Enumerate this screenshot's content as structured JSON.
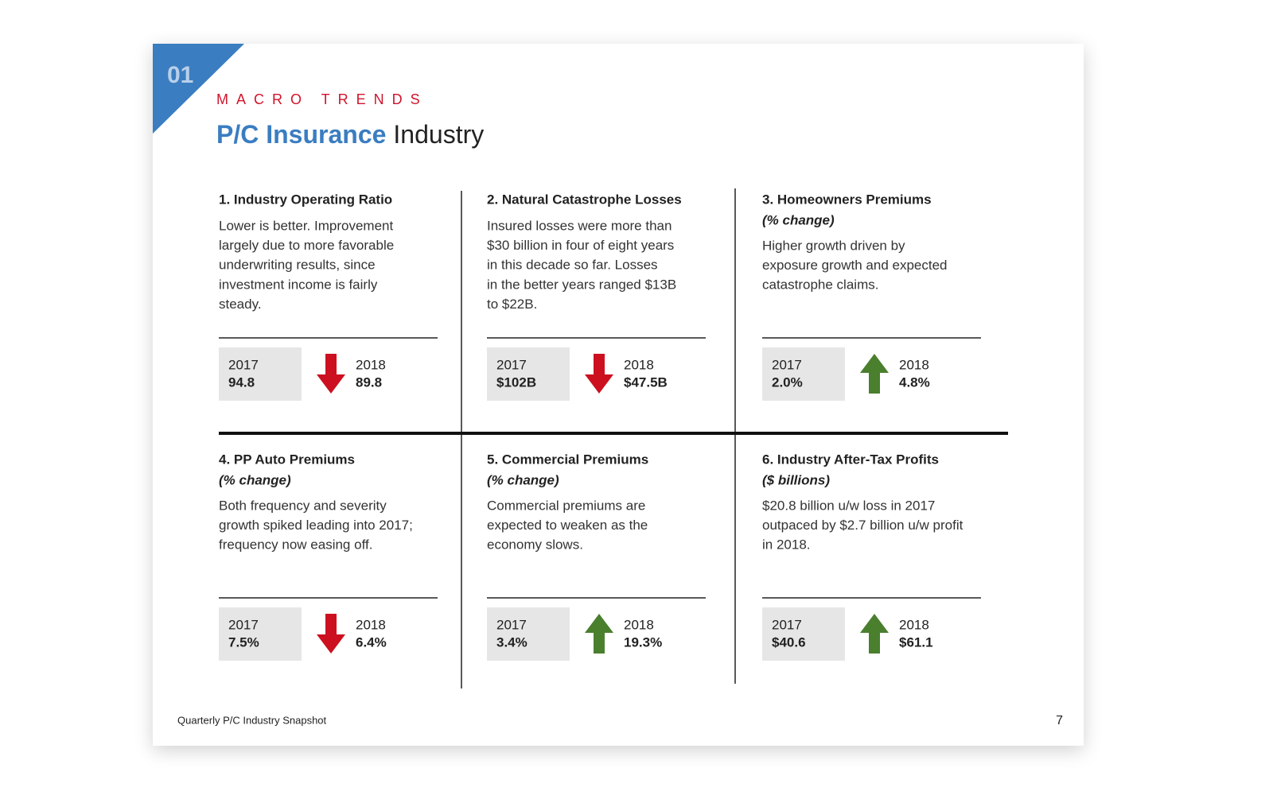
{
  "header": {
    "section_number": "01",
    "kicker": "MACRO TRENDS",
    "title_bold": "P/C Insurance",
    "title_light": "Industry"
  },
  "cards": [
    {
      "title": "1. Industry Operating Ratio",
      "body": [
        "Lower is better. Improvement",
        "largely due to more favorable",
        "underwriting results, since",
        "investment income is fairly",
        "steady."
      ],
      "before_label": "2017",
      "before_value": "94.8",
      "after_label": "2018",
      "after_value": "89.8",
      "trend": "down"
    },
    {
      "title": "2. Natural Catastrophe Losses",
      "body": [
        "Insured losses were more than",
        "$30 billion in four of eight years",
        "in this decade so far. Losses",
        "in the better years ranged $13B",
        "to $22B."
      ],
      "before_label": "2017",
      "before_value": "$102B",
      "after_label": "2018",
      "after_value": "$47.5B",
      "trend": "down"
    },
    {
      "title": "3. Homeowners Premiums",
      "subtitle": "(% change)",
      "body": [
        "Higher growth driven by",
        "exposure growth and expected",
        "catastrophe claims."
      ],
      "before_label": "2017",
      "before_value": "2.0%",
      "after_label": "2018",
      "after_value": "4.8%",
      "trend": "up"
    },
    {
      "title": "4. PP Auto Premiums",
      "subtitle": "(% change)",
      "body": [
        "Both frequency and severity",
        "growth spiked leading into 2017;",
        "frequency now easing off."
      ],
      "before_label": "2017",
      "before_value": "7.5%",
      "after_label": "2018",
      "after_value": "6.4%",
      "trend": "down"
    },
    {
      "title": "5. Commercial Premiums",
      "subtitle": "(% change)",
      "body": [
        "Commercial premiums are",
        "expected to weaken as the",
        "economy slows."
      ],
      "before_label": "2017",
      "before_value": "3.4%",
      "after_label": "2018",
      "after_value": "19.3%",
      "trend": "up"
    },
    {
      "title": "6. Industry After-Tax Profits",
      "subtitle": "($ billions)",
      "body": [
        "$20.8 billion u/w loss in 2017",
        "outpaced by $2.7 billion u/w profit",
        "in 2018."
      ],
      "before_label": "2017",
      "before_value": "$40.6",
      "after_label": "2018",
      "after_value": "$61.1",
      "trend": "up"
    }
  ],
  "footer": {
    "text": "Quarterly P/C Industry Snapshot",
    "page_number": "7"
  }
}
